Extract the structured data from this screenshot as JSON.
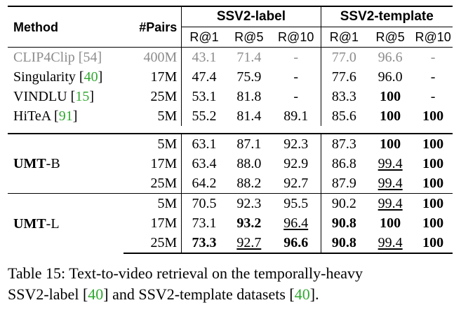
{
  "header": {
    "method": "Method",
    "pairs": "#Pairs",
    "group1": "SSV2-label",
    "group2": "SSV2-template",
    "metrics": [
      "R@1",
      "R@5",
      "R@10"
    ]
  },
  "baselines": [
    {
      "name": "CLIP4Clip",
      "cite": "54",
      "pairs": "400M",
      "v": [
        "43.1",
        "71.4",
        "-",
        "77.0",
        "96.6",
        "-"
      ]
    },
    {
      "name": "Singularity",
      "cite": "40",
      "pairs": "17M",
      "v": [
        "47.4",
        "75.9",
        "-",
        "77.6",
        "96.0",
        "-"
      ]
    },
    {
      "name": "VINDLU",
      "cite": "15",
      "pairs": "25M",
      "v": [
        "53.1",
        "81.8",
        "-",
        "83.3",
        "100",
        "-"
      ]
    },
    {
      "name": "HiTeA",
      "cite": "91",
      "pairs": "5M",
      "v": [
        "55.2",
        "81.4",
        "89.1",
        "85.6",
        "100",
        "100"
      ]
    }
  ],
  "umt_b": {
    "bold": "UMT",
    "suffix": "-B",
    "rows": [
      {
        "pairs": "5M",
        "v": [
          "63.1",
          "87.1",
          "92.3",
          "87.3",
          "100",
          "100"
        ]
      },
      {
        "pairs": "17M",
        "v": [
          "63.4",
          "88.0",
          "92.9",
          "86.8",
          "99.4",
          "100"
        ]
      },
      {
        "pairs": "25M",
        "v": [
          "64.2",
          "88.2",
          "92.7",
          "87.9",
          "99.4",
          "100"
        ]
      }
    ]
  },
  "umt_l": {
    "bold": "UMT",
    "suffix": "-L",
    "rows": [
      {
        "pairs": "5M",
        "v": [
          "70.5",
          "92.3",
          "95.5",
          "90.2",
          "99.4",
          "100"
        ]
      },
      {
        "pairs": "17M",
        "v": [
          "73.1",
          "93.2",
          "96.4",
          "90.8",
          "100",
          "100"
        ]
      },
      {
        "pairs": "25M",
        "v": [
          "73.3",
          "92.7",
          "96.6",
          "90.8",
          "99.4",
          "100"
        ]
      }
    ]
  },
  "caption": {
    "line1": "Table 15: Text-to-video retrieval on the temporally-heavy",
    "line2_a": "SSV2-label [",
    "cite_a": "40",
    "line2_b": "] and SSV2-template datasets [",
    "cite_b": "40",
    "line2_c": "]."
  }
}
